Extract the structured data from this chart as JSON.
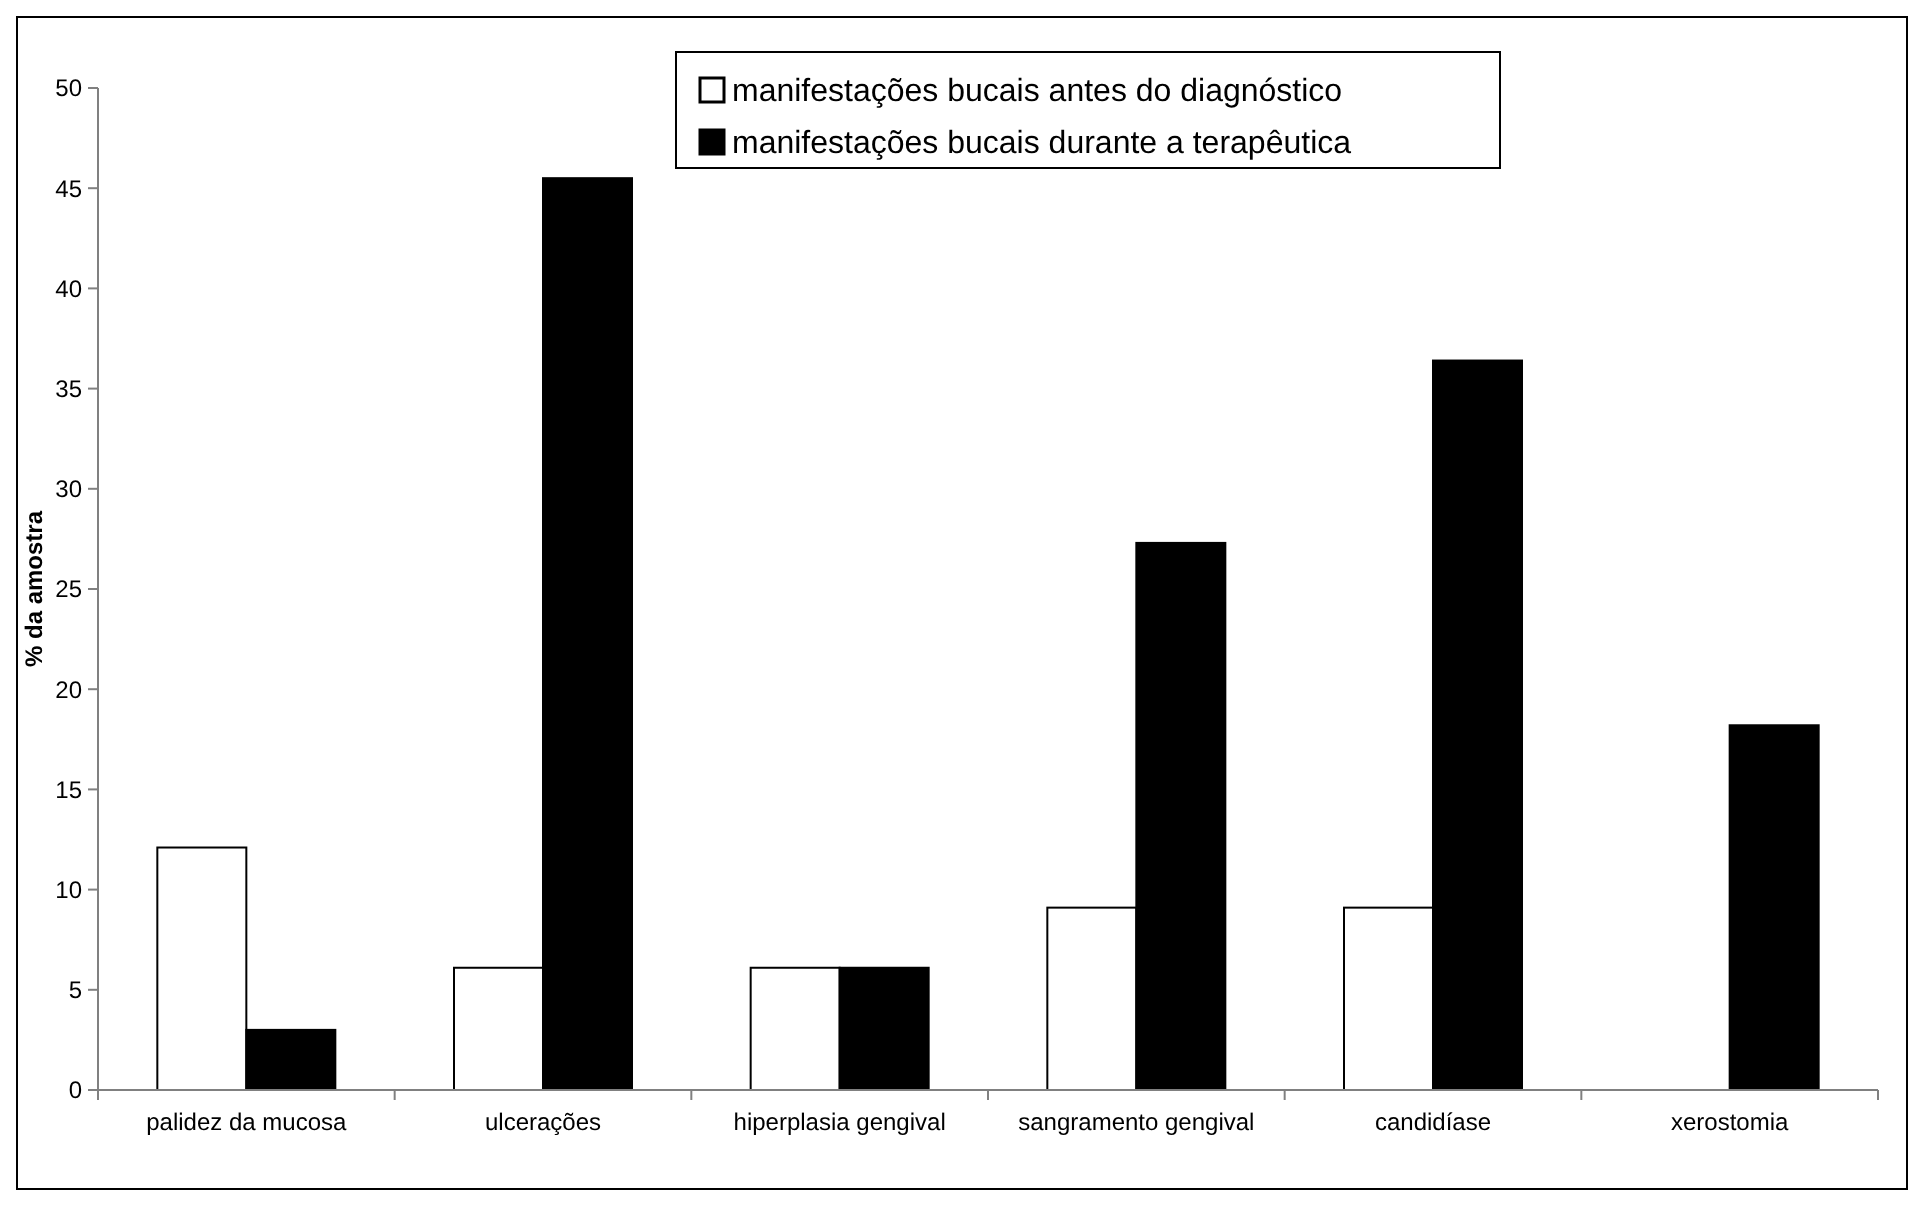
{
  "chart_data": {
    "type": "bar",
    "ylabel": "% da amostra",
    "categories": [
      "palidez da mucosa",
      "ulcerações",
      "hiperplasia gengival",
      "sangramento gengival",
      "candidíase",
      "xerostomia"
    ],
    "series": [
      {
        "name": "manifestações bucais antes do diagnóstico",
        "color": "#ffffff",
        "values": [
          12.1,
          6.1,
          6.1,
          9.1,
          9.1,
          0
        ]
      },
      {
        "name": "manifestações bucais durante a terapêutica",
        "color": "#000000",
        "values": [
          3,
          45.5,
          6.1,
          27.3,
          36.4,
          18.2
        ]
      }
    ],
    "ylim": [
      0,
      50
    ],
    "yticks": [
      0,
      5,
      10,
      15,
      20,
      25,
      30,
      35,
      40,
      45,
      50
    ],
    "legend": "top",
    "grid": false
  }
}
